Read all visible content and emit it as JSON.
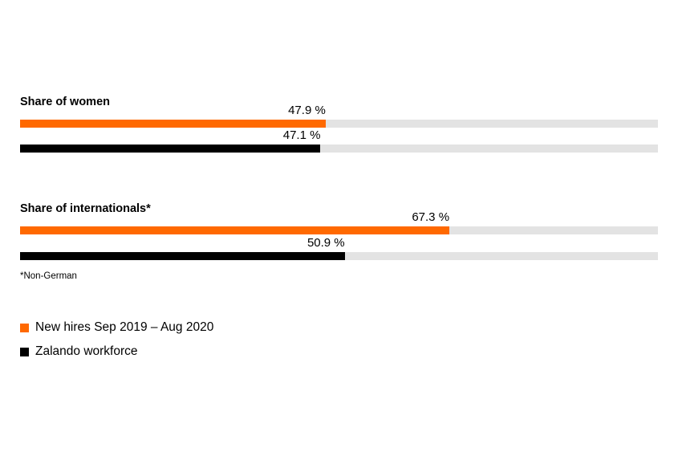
{
  "chart_data": {
    "type": "bar",
    "orientation": "horizontal",
    "xlim": [
      0,
      100
    ],
    "groups": [
      {
        "title": "Share of women",
        "values": [
          47.9,
          47.1
        ],
        "labels": [
          "47.9 %",
          "47.1 %"
        ]
      },
      {
        "title": "Share of internationals*",
        "values": [
          67.3,
          50.9
        ],
        "labels": [
          "67.3 %",
          "50.9 %"
        ]
      }
    ],
    "series": [
      {
        "name": "New hires Sep 2019 – Aug 2020",
        "color": "#ff6900"
      },
      {
        "name": "Zalando workforce",
        "color": "#000000"
      }
    ],
    "track_color": "#e3e3e3",
    "footnote": "*Non-German",
    "legend_position": "bottom-left"
  }
}
